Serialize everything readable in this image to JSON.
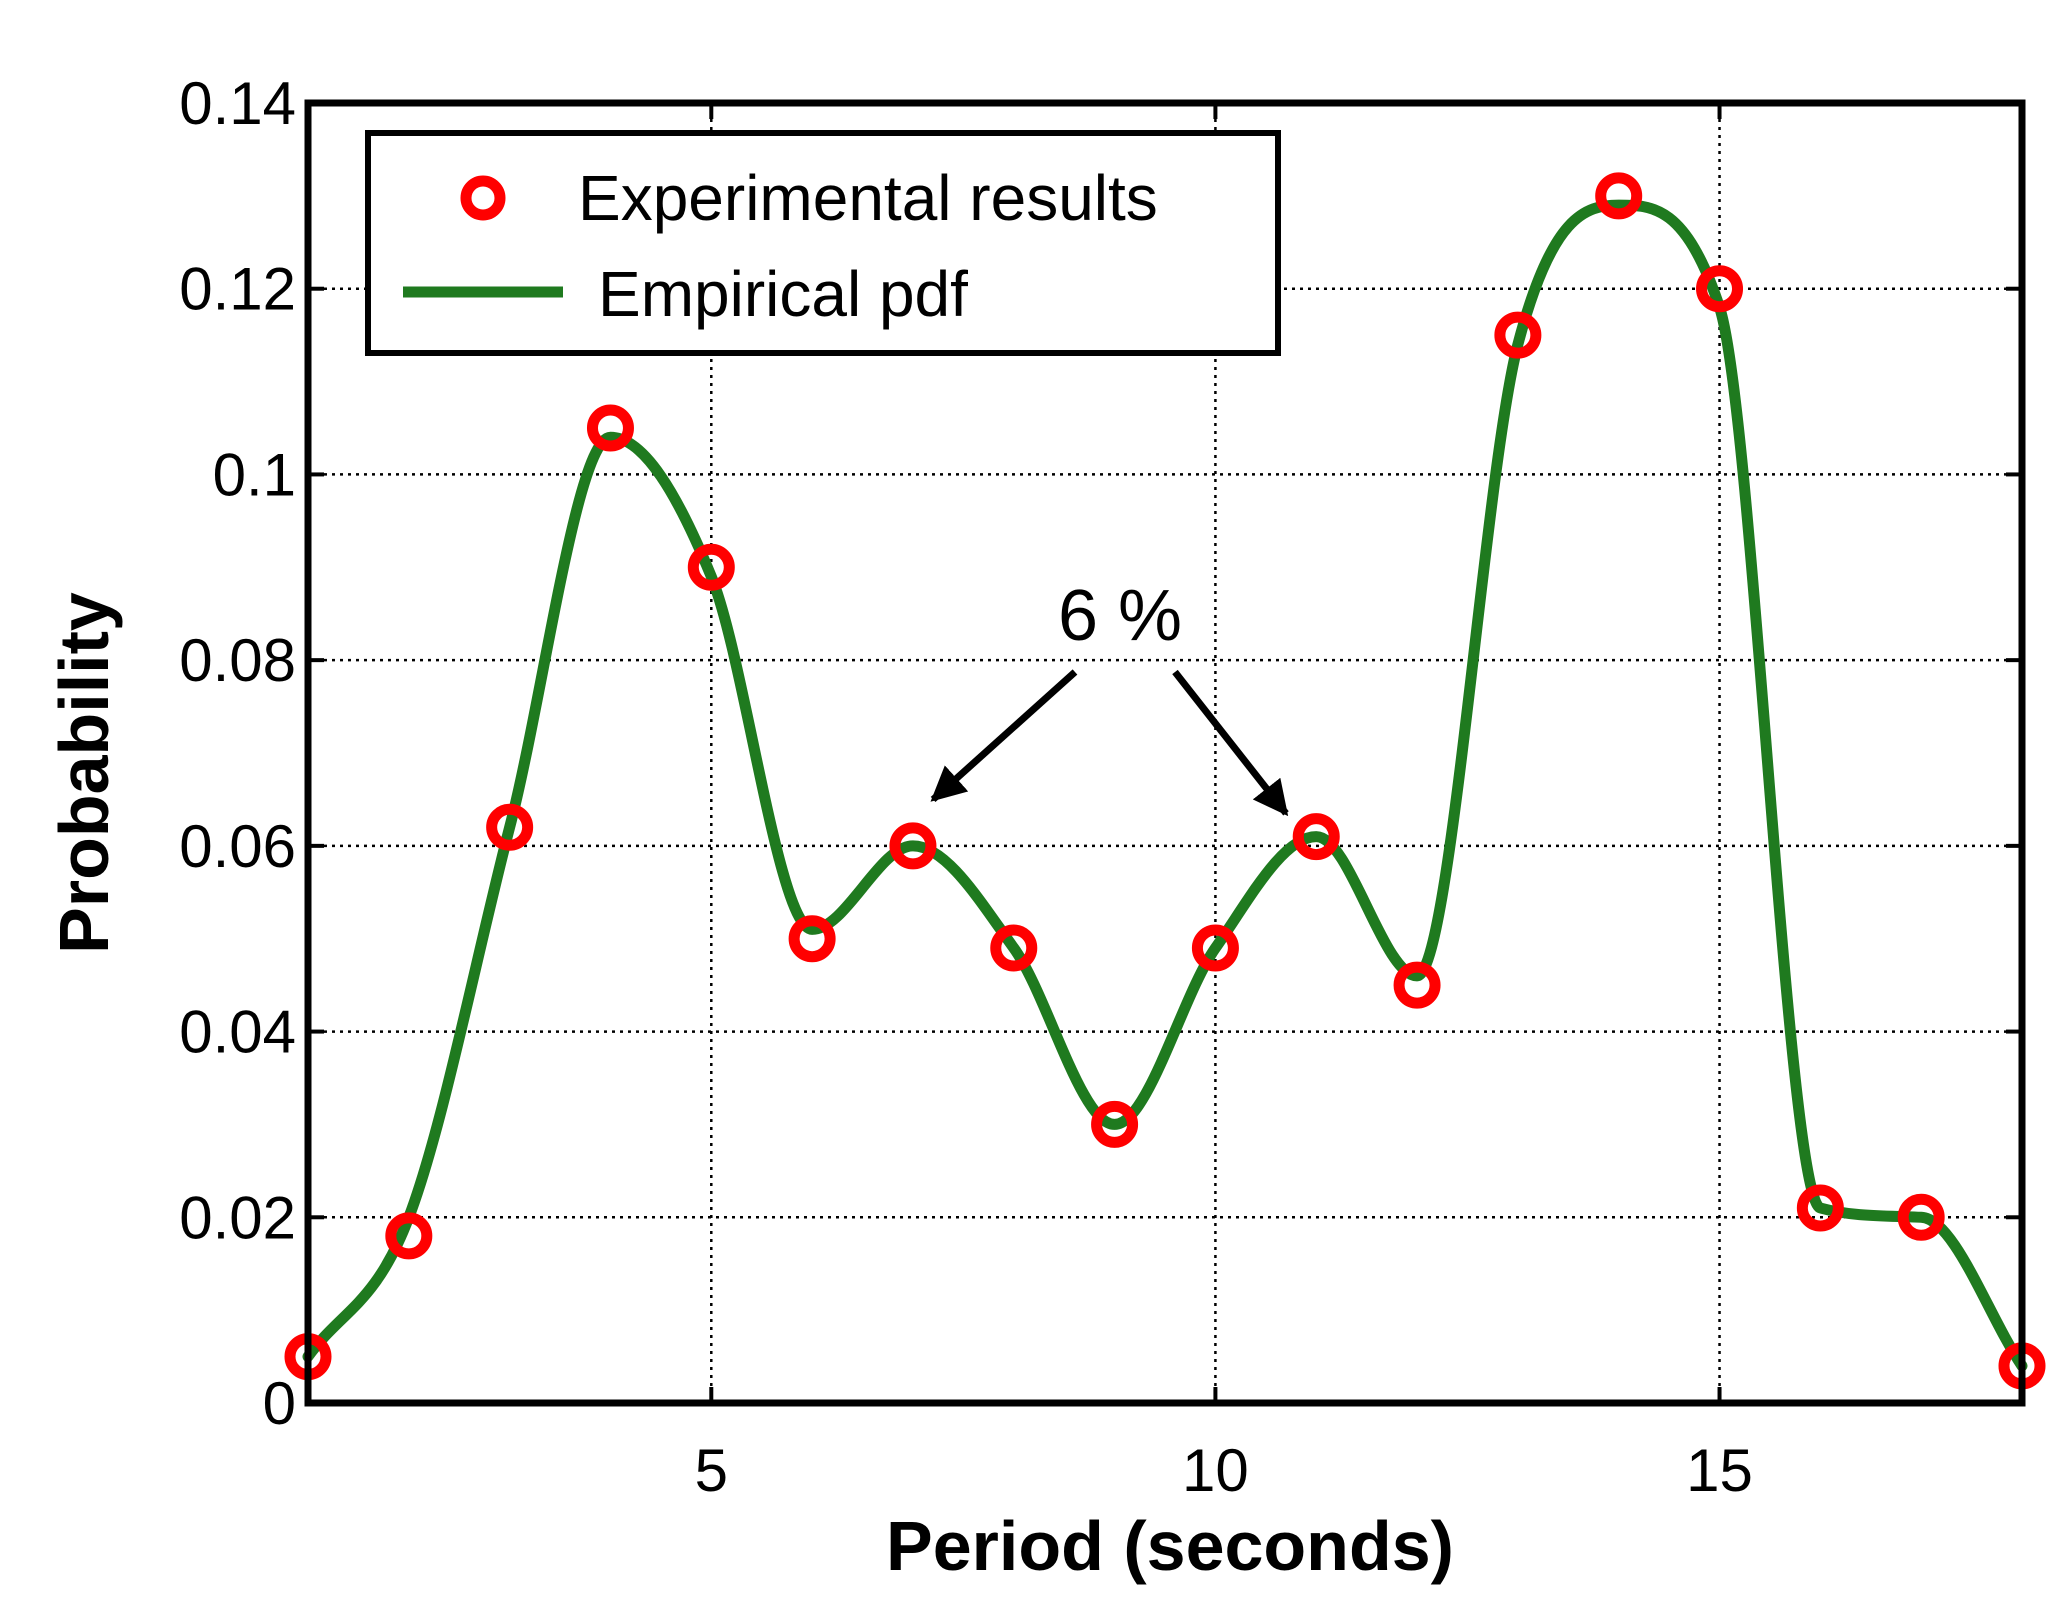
{
  "chart_data": {
    "type": "line",
    "title": "",
    "xlabel": "Period (seconds)",
    "ylabel": "Probability",
    "xlim": [
      1,
      18
    ],
    "ylim": [
      0,
      0.14
    ],
    "xticks": [
      5,
      10,
      15
    ],
    "xtick_labels": [
      "5",
      "10",
      "15"
    ],
    "yticks": [
      0,
      0.02,
      0.04,
      0.06,
      0.08,
      0.1,
      0.12,
      0.14
    ],
    "ytick_labels": [
      "0",
      "0.02",
      "0.04",
      "0.06",
      "0.08",
      "0.1",
      "0.12",
      "0.14"
    ],
    "grid": true,
    "legend_position": "top-left",
    "series": [
      {
        "name": "Experimental results",
        "kind": "scatter",
        "marker": "circle",
        "color": "#ff0000",
        "x": [
          1,
          2,
          3,
          4,
          5,
          6,
          7,
          8,
          9,
          10,
          11,
          12,
          13,
          14,
          15,
          16,
          17,
          18
        ],
        "y": [
          0.005,
          0.018,
          0.062,
          0.105,
          0.09,
          0.05,
          0.06,
          0.049,
          0.03,
          0.049,
          0.061,
          0.045,
          0.115,
          0.13,
          0.12,
          0.021,
          0.02,
          0.004
        ]
      },
      {
        "name": "Empirical pdf",
        "kind": "line",
        "color": "#1f7a1f",
        "x": [
          1,
          2,
          3,
          4,
          5,
          6,
          7,
          8,
          9,
          10,
          11,
          12,
          13,
          14,
          15,
          16,
          17,
          18
        ],
        "y": [
          0.005,
          0.02,
          0.062,
          0.104,
          0.089,
          0.051,
          0.06,
          0.049,
          0.03,
          0.049,
          0.061,
          0.046,
          0.114,
          0.129,
          0.118,
          0.021,
          0.02,
          0.004
        ]
      }
    ],
    "annotation": {
      "text": "6 %",
      "targets": [
        {
          "x": 7.2,
          "y": 0.065
        },
        {
          "x": 10.7,
          "y": 0.0635
        }
      ]
    }
  }
}
